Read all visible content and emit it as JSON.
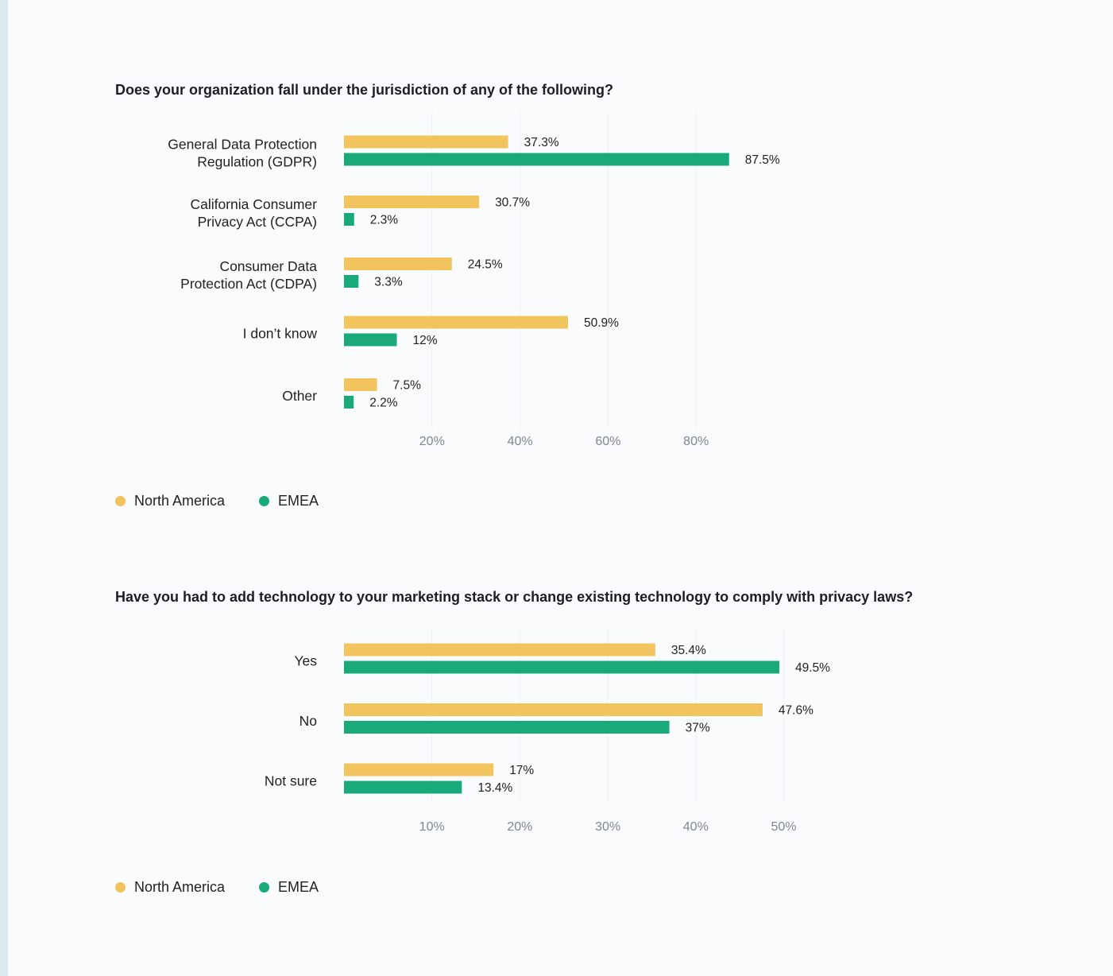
{
  "colors": {
    "north_america": "#f2c45e",
    "emea": "#1aaa7a"
  },
  "chart_data": [
    {
      "type": "bar",
      "orientation": "horizontal",
      "title": "Does your organization fall under the jurisdiction of any of the following?",
      "categories": [
        [
          "General Data Protection",
          "Regulation (GDPR)"
        ],
        [
          "California Consumer",
          "Privacy Act (CCPA)"
        ],
        [
          "Consumer Data",
          "Protection Act (CDPA)"
        ],
        [
          "I don’t know"
        ],
        [
          "Other"
        ]
      ],
      "series": [
        {
          "name": "North America",
          "color": "#f2c45e",
          "values": [
            37.3,
            30.7,
            24.5,
            50.9,
            7.5
          ],
          "labels": [
            "37.3%",
            "30.7%",
            "24.5%",
            "50.9%",
            "7.5%"
          ]
        },
        {
          "name": "EMEA",
          "color": "#1aaa7a",
          "values": [
            87.5,
            2.3,
            3.3,
            12,
            2.2
          ],
          "labels": [
            "87.5%",
            "2.3%",
            "3.3%",
            "12%",
            "2.2%"
          ]
        }
      ],
      "x_ticks": [
        20,
        40,
        60,
        80
      ],
      "x_tick_labels": [
        "20%",
        "40%",
        "60%",
        "80%"
      ],
      "xlim": [
        0,
        95
      ],
      "grid": true,
      "legend_position": "bottom-left"
    },
    {
      "type": "bar",
      "orientation": "horizontal",
      "title": "Have you had to add technology to your marketing stack or change existing technology to comply with privacy laws?",
      "categories": [
        [
          "Yes"
        ],
        [
          "No"
        ],
        [
          "Not sure"
        ]
      ],
      "series": [
        {
          "name": "North America",
          "color": "#f2c45e",
          "values": [
            35.4,
            47.6,
            17
          ],
          "labels": [
            "35.4%",
            "47.6%",
            "17%"
          ]
        },
        {
          "name": "EMEA",
          "color": "#1aaa7a",
          "values": [
            49.5,
            37,
            13.4
          ],
          "labels": [
            "49.5%",
            "37%",
            "13.4%"
          ]
        }
      ],
      "x_ticks": [
        10,
        20,
        30,
        40,
        50
      ],
      "x_tick_labels": [
        "10%",
        "20%",
        "30%",
        "40%",
        "50%"
      ],
      "xlim": [
        0,
        50
      ],
      "grid": true,
      "legend_position": "bottom-left"
    }
  ]
}
